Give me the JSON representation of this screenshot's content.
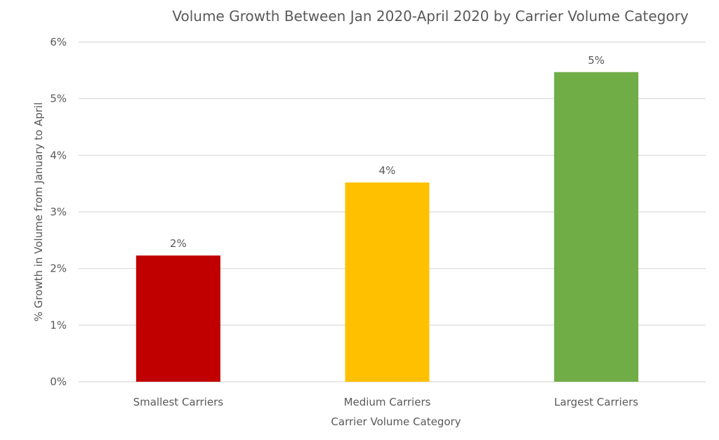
{
  "chart_data": {
    "type": "bar",
    "title": "Volume Growth Between Jan 2020-April 2020 by Carrier Volume Category",
    "xlabel": "Carrier Volume Category",
    "ylabel": "% Growth in Volume from January to April",
    "categories": [
      "Smallest Carriers",
      "Medium Carriers",
      "Largest Carriers"
    ],
    "values": [
      2.23,
      3.52,
      5.47
    ],
    "data_labels": [
      "2%",
      "4%",
      "5%"
    ],
    "colors": [
      "#C00000",
      "#FFC000",
      "#70AD47"
    ],
    "ylim": [
      0,
      6
    ],
    "yticks": [
      0,
      1,
      2,
      3,
      4,
      5,
      6
    ],
    "ytick_labels": [
      "0%",
      "1%",
      "2%",
      "3%",
      "4%",
      "5%",
      "6%"
    ],
    "grid": true,
    "legend": "none"
  }
}
